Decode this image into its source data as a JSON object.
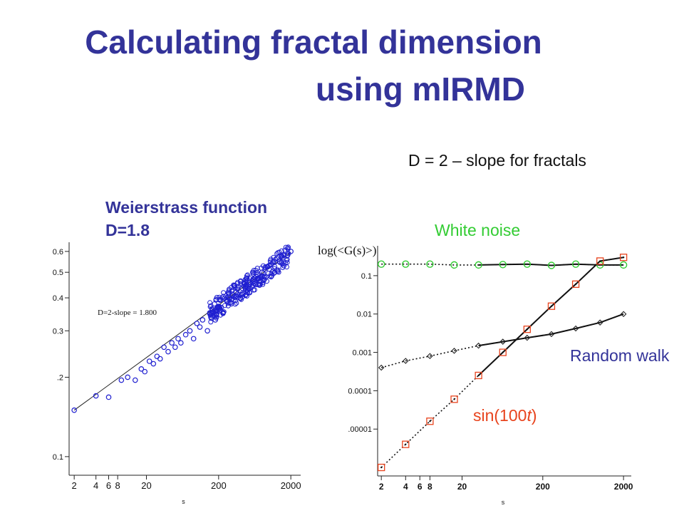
{
  "slide": {
    "title_line1": "Calculating fractal dimension",
    "title_line2": "using mIRMD",
    "formula": "D = 2 – slope  for fractals",
    "weierstrass_label": "Weierstrass function D=1.8",
    "white_noise_label": "White noise",
    "random_walk_label": "Random walk",
    "sin_label_pre": "sin(100",
    "sin_label_var": "t",
    "sin_label_post": ")"
  },
  "colors": {
    "title": "#333399",
    "weierstrass_points": "#1f1fd0",
    "white_noise": "#33cc33",
    "random_walk": "#333399",
    "sin": "#e8441e"
  },
  "chart_data": [
    {
      "type": "scatter",
      "panel": "left",
      "xlabel": "s",
      "ylabel": "",
      "xscale": "log",
      "yscale": "log",
      "xlim": [
        1.7,
        2500
      ],
      "ylim": [
        0.085,
        0.65
      ],
      "x_ticks": [
        2,
        4,
        6,
        8,
        20,
        200,
        2000
      ],
      "y_ticks": [
        0.1,
        0.2,
        0.3,
        0.4,
        0.5,
        0.6
      ],
      "y_tick_labels": [
        "0.1",
        ".2",
        "0.3",
        "0.4",
        "0.5",
        "0.6"
      ],
      "annotation": "D=2-slope = 1.800",
      "fit": {
        "slope": 0.2,
        "x": [
          2,
          2000
        ],
        "y": [
          0.15,
          0.595
        ]
      },
      "series": [
        {
          "x": [
            2,
            4,
            6,
            9,
            11,
            14,
            17,
            19,
            22,
            25,
            28,
            31,
            35,
            40,
            45,
            50,
            55,
            60,
            70,
            80,
            90,
            100,
            110,
            120,
            140,
            160,
            180,
            200,
            230,
            260,
            300,
            350,
            400,
            450,
            500,
            600,
            700,
            800,
            900,
            1000,
            1200,
            1400,
            1600,
            1800,
            2000
          ],
          "y": [
            0.15,
            0.17,
            0.168,
            0.195,
            0.2,
            0.195,
            0.215,
            0.21,
            0.23,
            0.225,
            0.24,
            0.235,
            0.26,
            0.25,
            0.27,
            0.26,
            0.28,
            0.27,
            0.29,
            0.3,
            0.28,
            0.32,
            0.31,
            0.33,
            0.3,
            0.35,
            0.33,
            0.37,
            0.35,
            0.39,
            0.38,
            0.42,
            0.4,
            0.45,
            0.42,
            0.47,
            0.45,
            0.5,
            0.48,
            0.53,
            0.5,
            0.55,
            0.53,
            0.58,
            0.6
          ]
        }
      ]
    },
    {
      "type": "scatter",
      "panel": "right",
      "xlabel": "s",
      "ylabel": "log(<G(s)>)",
      "xscale": "log",
      "yscale": "log",
      "xlim": [
        1.8,
        2300
      ],
      "ylim": [
        6e-07,
        0.6
      ],
      "x_ticks": [
        2,
        4,
        6,
        8,
        20,
        200,
        2000
      ],
      "y_ticks": [
        0.1,
        0.01,
        0.001,
        0.0001,
        1e-05
      ],
      "y_tick_labels": [
        "0.1",
        "0.01",
        "0.001",
        "0.0001",
        ".00001"
      ],
      "series": [
        {
          "name": "White noise",
          "x": [
            2,
            4,
            8,
            16,
            32,
            64,
            128,
            256,
            512,
            1024,
            2000
          ],
          "y": [
            0.2,
            0.2,
            0.2,
            0.19,
            0.19,
            0.195,
            0.2,
            0.185,
            0.2,
            0.19,
            0.19
          ]
        },
        {
          "name": "Random walk",
          "x": [
            2,
            4,
            8,
            16,
            32,
            64,
            128,
            256,
            512,
            1024,
            2000
          ],
          "y": [
            0.0004,
            0.0006,
            0.0008,
            0.0011,
            0.0015,
            0.0019,
            0.0024,
            0.003,
            0.0042,
            0.006,
            0.01
          ]
        },
        {
          "name": "sin(100t)",
          "x": [
            2,
            4,
            8,
            16,
            32,
            64,
            128,
            256,
            512,
            1024,
            2000
          ],
          "y": [
            1e-06,
            4e-06,
            1.6e-05,
            6e-05,
            0.00025,
            0.001,
            0.004,
            0.016,
            0.06,
            0.24,
            0.3
          ]
        }
      ]
    }
  ]
}
